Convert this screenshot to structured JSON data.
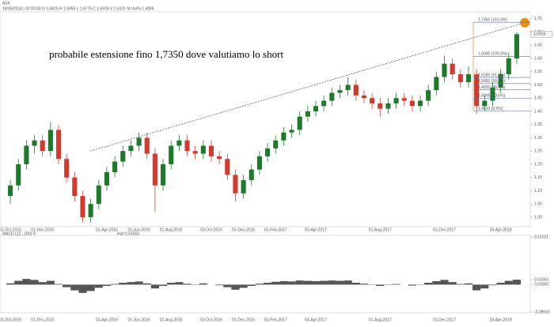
{
  "symbol": "A2A",
  "info": "18/05/2018 | 00:00:00 O 1,6825 H 1,6955 L 1,6775 C 1,6915 V 2,5101 M Var% 1,4089",
  "chart_data": {
    "type": "candlestick",
    "annotation": "probabile estensione fino 1,7350 dove valutiamo lo short",
    "categories": [
      "01-Oct-2015",
      null,
      null,
      null,
      "01-Dec-2015",
      null,
      null,
      null,
      null,
      null,
      null,
      null,
      "01-Apr-2016",
      null,
      null,
      null,
      "01-Jun-2016",
      null,
      null,
      null,
      "01-Aug-2016",
      null,
      null,
      null,
      null,
      "03-Oct-2016",
      null,
      null,
      null,
      "01-Dec-2016",
      null,
      null,
      null,
      "01-Feb-2017",
      null,
      null,
      null,
      null,
      "03-Apr-2017",
      null,
      null,
      null,
      null,
      null,
      null,
      null,
      "01-Aug-2017",
      null,
      null,
      null,
      null,
      null,
      null,
      null,
      "01-Dec-2017",
      null,
      null,
      null,
      null,
      null,
      null,
      "03-Apr-2018",
      null,
      null
    ],
    "ohlc": [
      [
        1.08,
        1.14,
        1.05,
        1.12
      ],
      [
        1.12,
        1.22,
        1.1,
        1.2
      ],
      [
        1.2,
        1.29,
        1.18,
        1.27
      ],
      [
        1.27,
        1.31,
        1.24,
        1.29
      ],
      [
        1.29,
        1.31,
        1.23,
        1.25
      ],
      [
        1.25,
        1.36,
        1.23,
        1.33
      ],
      [
        1.33,
        1.35,
        1.2,
        1.22
      ],
      [
        1.22,
        1.24,
        1.13,
        1.15
      ],
      [
        1.15,
        1.17,
        1.06,
        1.08
      ],
      [
        1.08,
        1.1,
        0.98,
        1.0
      ],
      [
        1.0,
        1.07,
        0.98,
        1.05
      ],
      [
        1.05,
        1.14,
        1.03,
        1.12
      ],
      [
        1.12,
        1.19,
        1.1,
        1.17
      ],
      [
        1.17,
        1.23,
        1.15,
        1.21
      ],
      [
        1.21,
        1.27,
        1.19,
        1.25
      ],
      [
        1.25,
        1.29,
        1.23,
        1.27
      ],
      [
        1.27,
        1.32,
        1.25,
        1.3
      ],
      [
        1.3,
        1.32,
        1.22,
        1.24
      ],
      [
        1.24,
        1.26,
        1.02,
        1.12
      ],
      [
        1.12,
        1.22,
        1.1,
        1.2
      ],
      [
        1.2,
        1.29,
        1.18,
        1.27
      ],
      [
        1.27,
        1.31,
        1.25,
        1.29
      ],
      [
        1.29,
        1.31,
        1.23,
        1.25
      ],
      [
        1.25,
        1.27,
        1.22,
        1.24
      ],
      [
        1.24,
        1.29,
        1.22,
        1.27
      ],
      [
        1.27,
        1.29,
        1.21,
        1.23
      ],
      [
        1.23,
        1.25,
        1.2,
        1.22
      ],
      [
        1.22,
        1.24,
        1.14,
        1.16
      ],
      [
        1.16,
        1.18,
        1.06,
        1.09
      ],
      [
        1.09,
        1.16,
        1.07,
        1.14
      ],
      [
        1.14,
        1.2,
        1.12,
        1.18
      ],
      [
        1.18,
        1.25,
        1.16,
        1.23
      ],
      [
        1.23,
        1.28,
        1.21,
        1.26
      ],
      [
        1.26,
        1.31,
        1.24,
        1.29
      ],
      [
        1.29,
        1.34,
        1.27,
        1.32
      ],
      [
        1.32,
        1.35,
        1.3,
        1.33
      ],
      [
        1.33,
        1.4,
        1.31,
        1.38
      ],
      [
        1.38,
        1.42,
        1.36,
        1.4
      ],
      [
        1.4,
        1.44,
        1.38,
        1.42
      ],
      [
        1.42,
        1.46,
        1.4,
        1.44
      ],
      [
        1.44,
        1.49,
        1.42,
        1.47
      ],
      [
        1.47,
        1.5,
        1.45,
        1.48
      ],
      [
        1.48,
        1.53,
        1.46,
        1.5
      ],
      [
        1.5,
        1.52,
        1.44,
        1.46
      ],
      [
        1.46,
        1.48,
        1.43,
        1.45
      ],
      [
        1.45,
        1.47,
        1.41,
        1.43
      ],
      [
        1.43,
        1.45,
        1.38,
        1.41
      ],
      [
        1.41,
        1.45,
        1.39,
        1.43
      ],
      [
        1.43,
        1.47,
        1.41,
        1.45
      ],
      [
        1.45,
        1.47,
        1.42,
        1.44
      ],
      [
        1.44,
        1.46,
        1.4,
        1.42
      ],
      [
        1.42,
        1.46,
        1.4,
        1.44
      ],
      [
        1.44,
        1.5,
        1.42,
        1.48
      ],
      [
        1.48,
        1.55,
        1.46,
        1.53
      ],
      [
        1.53,
        1.61,
        1.51,
        1.58
      ],
      [
        1.58,
        1.6,
        1.52,
        1.54
      ],
      [
        1.54,
        1.56,
        1.49,
        1.51
      ],
      [
        1.51,
        1.57,
        1.49,
        1.54
      ],
      [
        1.54,
        1.56,
        1.39,
        1.42
      ],
      [
        1.42,
        1.46,
        1.4,
        1.44
      ],
      [
        1.44,
        1.51,
        1.42,
        1.49
      ],
      [
        1.49,
        1.56,
        1.47,
        1.54
      ],
      [
        1.54,
        1.62,
        1.52,
        1.6
      ],
      [
        1.6,
        1.7,
        1.58,
        1.6915
      ]
    ],
    "ylim": [
      0.97,
      1.77
    ],
    "yticks": [
      {
        "value": 1.0,
        "label": "1.00"
      },
      {
        "value": 1.05,
        "label": "1.05"
      },
      {
        "value": 1.1,
        "label": "1.10"
      },
      {
        "value": 1.15,
        "label": "1.15"
      },
      {
        "value": 1.2,
        "label": "1.20"
      },
      {
        "value": 1.25,
        "label": "1.25"
      },
      {
        "value": 1.3,
        "label": "1.30"
      },
      {
        "value": 1.35,
        "label": "1.35"
      },
      {
        "value": 1.4,
        "label": "1.40"
      },
      {
        "value": 1.45,
        "label": "1.45"
      },
      {
        "value": 1.5,
        "label": "1.50"
      },
      {
        "value": 1.55,
        "label": "1.55"
      },
      {
        "value": 1.6,
        "label": "1.60"
      },
      {
        "value": 1.65,
        "label": "1.65"
      },
      {
        "value": 1.7,
        "label": "1.70"
      },
      {
        "value": 1.75,
        "label": "1.75"
      }
    ],
    "last_price": {
      "value": 1.6915,
      "label": "1,6915"
    },
    "trendline": {
      "x": [
        10,
        64
      ],
      "values": [
        1.25,
        1.735
      ]
    },
    "fib_levels": [
      {
        "value": 1.7365,
        "label": "1,7365 (161,8%)"
      },
      {
        "value": 1.608,
        "label": "1,6080 (100,0%)"
      },
      {
        "value": 1.528,
        "label": "1,5280 (61,8%)"
      },
      {
        "value": 1.505,
        "label": "1,5050 (50,0%)"
      },
      {
        "value": 1.482,
        "label": "1,4820 (38,2%)"
      },
      {
        "value": 1.4495,
        "label": "1,4495 (23,6%)"
      },
      {
        "value": 1.401,
        "label": "1,4010 (0,0%)"
      }
    ],
    "up_color": "#1d7a2a",
    "down_color": "#d23a2e",
    "macd": {
      "label": "MACD   (12 , 200)         9",
      "hist_label": "Hist  0,01563",
      "values": [
        0.004,
        0.012,
        0.018,
        0.015,
        0.008,
        0.012,
        0.002,
        -0.008,
        -0.018,
        -0.026,
        -0.02,
        -0.01,
        -0.004,
        0.002,
        0.006,
        0.008,
        0.01,
        0.004,
        -0.012,
        -0.004,
        0.006,
        0.008,
        0.003,
        0.001,
        0.004,
        0,
        -0.002,
        -0.008,
        -0.016,
        -0.01,
        -0.004,
        0.003,
        0.006,
        0.009,
        0.011,
        0.01,
        0.013,
        0.012,
        0.011,
        0.012,
        0.013,
        0.012,
        0.013,
        0.006,
        0.003,
        -0.001,
        -0.004,
        -0.001,
        0.002,
        0,
        -0.003,
        0.001,
        0.006,
        0.011,
        0.015,
        0.008,
        0.002,
        0.004,
        -0.018,
        -0.012,
        -0.002,
        0.006,
        0.012,
        0.01563
      ],
      "ylim": [
        -0.08616,
        0.15021
      ],
      "yticks": [
        {
          "value": 0.15021,
          "label": "0,15021"
        },
        {
          "value": 0.01563,
          "label": "0,01563"
        },
        {
          "value": 0,
          "label": "0,00000"
        },
        {
          "value": -0.08616,
          "label": "-0,08616"
        }
      ]
    }
  }
}
